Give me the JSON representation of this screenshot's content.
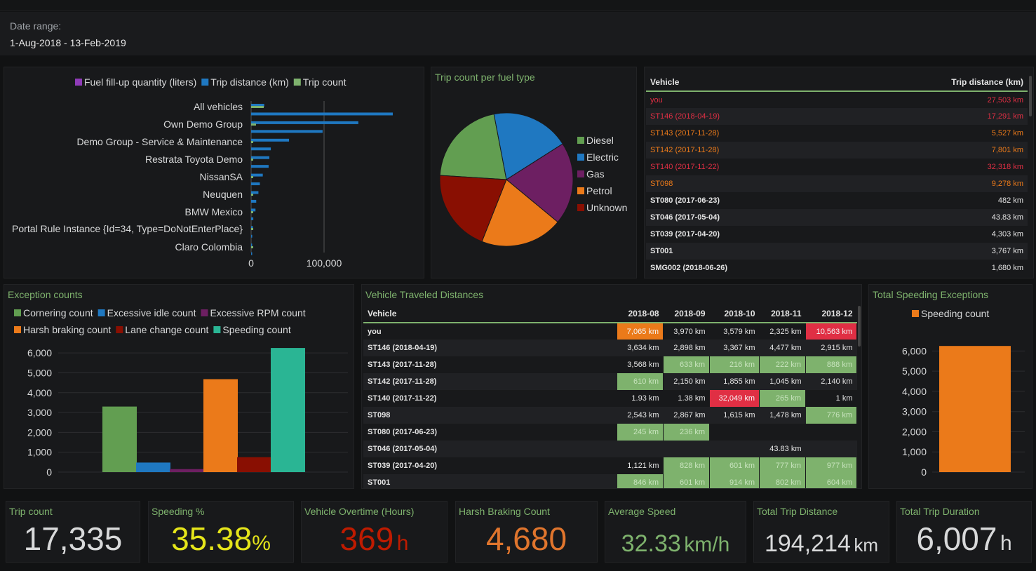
{
  "date_range": {
    "label": "Date range:",
    "value": "1-Aug-2018 - 13-Feb-2019"
  },
  "colors": {
    "green": "#7eb26d",
    "blue": "#1f78c1",
    "purple": "#6d1f62",
    "orange": "#eb7a1a",
    "red": "#bf1b00",
    "teal": "#2ab594",
    "purple_light": "#8f3bb8"
  },
  "chart_data": [
    {
      "type": "bar",
      "orientation": "horizontal",
      "legend": [
        "Fuel fill-up quantity (liters)",
        "Trip distance (km)",
        "Trip count"
      ],
      "categories": [
        "All vehicles",
        "Own Demo Group",
        "Demo Group - Service & Maintenance",
        "Restrata Toyota Demo",
        "NissanSA",
        "Neuquen",
        "BMW Mexico",
        "Portal Rule Instance {Id=34, Type=DoNotEnterPlace}",
        "Claro Colombia"
      ],
      "category_ticks": [
        0,
        2,
        4,
        6,
        8,
        10,
        12,
        14,
        16
      ],
      "rows": [
        18000,
        194214,
        147000,
        98000,
        52000,
        27000,
        25000,
        24000,
        16000,
        12000,
        10000,
        7000,
        6000,
        3000,
        2500,
        1500,
        1000,
        500
      ],
      "xlim": [
        0,
        200000
      ],
      "xticks": [
        0,
        100000
      ],
      "xtick_labels": [
        "0",
        "100,000"
      ]
    },
    {
      "type": "pie",
      "title": "Trip count per fuel type",
      "labels": [
        "Diesel",
        "Electric",
        "Gas",
        "Petrol",
        "Unknown"
      ],
      "values": [
        21,
        19,
        20,
        20,
        20
      ],
      "colors": [
        "#629e51",
        "#1f78c1",
        "#6d1f62",
        "#eb7a1a",
        "#890f02"
      ]
    },
    {
      "type": "bar",
      "title": "Exception counts",
      "legend": [
        "Cornering count",
        "Excessive idle count",
        "Excessive RPM count",
        "Harsh braking count",
        "Lane change count",
        "Speeding count"
      ],
      "values": [
        3300,
        480,
        150,
        4680,
        750,
        6250
      ],
      "colors": [
        "#629e51",
        "#1f78c1",
        "#6d1f62",
        "#eb7a1a",
        "#890f02",
        "#2ab594"
      ],
      "ylim": [
        0,
        6500
      ],
      "yticks": [
        "0",
        "1,000",
        "2,000",
        "3,000",
        "4,000",
        "5,000",
        "6,000"
      ]
    },
    {
      "type": "bar",
      "title": "Total Speeding Exceptions",
      "legend": [
        "Speeding count"
      ],
      "values": [
        6250
      ],
      "colors": [
        "#eb7a1a"
      ],
      "ylim": [
        0,
        6500
      ],
      "yticks": [
        "0",
        "1,000",
        "2,000",
        "3,000",
        "4,000",
        "5,000",
        "6,000"
      ]
    },
    {
      "type": "table",
      "title": "Vehicle Traveled Distances",
      "columns": [
        "Vehicle",
        "2018-08",
        "2018-09",
        "2018-10",
        "2018-11",
        "2018-12"
      ],
      "rows": [
        {
          "vehicle": "you",
          "cells": [
            {
              "v": "7,065 km",
              "c": "orange"
            },
            {
              "v": "3,970 km",
              "c": ""
            },
            {
              "v": "3,579 km",
              "c": ""
            },
            {
              "v": "2,325 km",
              "c": ""
            },
            {
              "v": "10,563 km",
              "c": "red"
            }
          ]
        },
        {
          "vehicle": "ST146 (2018-04-19)",
          "cells": [
            {
              "v": "3,634 km",
              "c": ""
            },
            {
              "v": "2,898 km",
              "c": ""
            },
            {
              "v": "3,367 km",
              "c": ""
            },
            {
              "v": "4,477 km",
              "c": ""
            },
            {
              "v": "2,915 km",
              "c": ""
            }
          ]
        },
        {
          "vehicle": "ST143 (2017-11-28)",
          "cells": [
            {
              "v": "3,568 km",
              "c": ""
            },
            {
              "v": "633 km",
              "c": "green"
            },
            {
              "v": "216 km",
              "c": "green"
            },
            {
              "v": "222 km",
              "c": "green"
            },
            {
              "v": "888 km",
              "c": "green"
            }
          ]
        },
        {
          "vehicle": "ST142 (2017-11-28)",
          "cells": [
            {
              "v": "610 km",
              "c": "green"
            },
            {
              "v": "2,150 km",
              "c": ""
            },
            {
              "v": "1,855 km",
              "c": ""
            },
            {
              "v": "1,045 km",
              "c": ""
            },
            {
              "v": "2,140 km",
              "c": ""
            }
          ]
        },
        {
          "vehicle": "ST140 (2017-11-22)",
          "cells": [
            {
              "v": "1.93 km",
              "c": ""
            },
            {
              "v": "1.38 km",
              "c": ""
            },
            {
              "v": "32,049 km",
              "c": "red"
            },
            {
              "v": "265 km",
              "c": "green"
            },
            {
              "v": "1 km",
              "c": ""
            }
          ]
        },
        {
          "vehicle": "ST098",
          "cells": [
            {
              "v": "2,543 km",
              "c": ""
            },
            {
              "v": "2,867 km",
              "c": ""
            },
            {
              "v": "1,615 km",
              "c": ""
            },
            {
              "v": "1,478 km",
              "c": ""
            },
            {
              "v": "776 km",
              "c": "green"
            }
          ]
        },
        {
          "vehicle": "ST080 (2017-06-23)",
          "cells": [
            {
              "v": "245 km",
              "c": "green"
            },
            {
              "v": "236 km",
              "c": "green"
            },
            {
              "v": "",
              "c": ""
            },
            {
              "v": "",
              "c": ""
            },
            {
              "v": "",
              "c": ""
            }
          ]
        },
        {
          "vehicle": "ST046 (2017-05-04)",
          "cells": [
            {
              "v": "",
              "c": ""
            },
            {
              "v": "",
              "c": ""
            },
            {
              "v": "",
              "c": ""
            },
            {
              "v": "43.83 km",
              "c": ""
            },
            {
              "v": "",
              "c": ""
            }
          ]
        },
        {
          "vehicle": "ST039 (2017-04-20)",
          "cells": [
            {
              "v": "1,121 km",
              "c": ""
            },
            {
              "v": "828 km",
              "c": "green"
            },
            {
              "v": "601 km",
              "c": "green"
            },
            {
              "v": "777 km",
              "c": "green"
            },
            {
              "v": "977 km",
              "c": "green"
            }
          ]
        },
        {
          "vehicle": "ST001",
          "cells": [
            {
              "v": "846 km",
              "c": "green"
            },
            {
              "v": "601 km",
              "c": "green"
            },
            {
              "v": "914 km",
              "c": "green"
            },
            {
              "v": "802 km",
              "c": "green"
            },
            {
              "v": "604 km",
              "c": "green"
            }
          ]
        }
      ]
    },
    {
      "type": "table",
      "columns": [
        "Vehicle",
        "Trip distance (km)"
      ],
      "rows": [
        {
          "vehicle": "you",
          "value": "27,503 km",
          "c": "red"
        },
        {
          "vehicle": "ST146 (2018-04-19)",
          "value": "17,291 km",
          "c": "red"
        },
        {
          "vehicle": "ST143 (2017-11-28)",
          "value": "5,527 km",
          "c": "orange"
        },
        {
          "vehicle": "ST142 (2017-11-28)",
          "value": "7,801 km",
          "c": "orange"
        },
        {
          "vehicle": "ST140 (2017-11-22)",
          "value": "32,318 km",
          "c": "red"
        },
        {
          "vehicle": "ST098",
          "value": "9,278 km",
          "c": "orange"
        },
        {
          "vehicle": "ST080 (2017-06-23)",
          "value": "482 km",
          "c": ""
        },
        {
          "vehicle": "ST046 (2017-05-04)",
          "value": "43.83 km",
          "c": ""
        },
        {
          "vehicle": "ST039 (2017-04-20)",
          "value": "4,303 km",
          "c": ""
        },
        {
          "vehicle": "ST001",
          "value": "3,767 km",
          "c": ""
        },
        {
          "vehicle": "SMG002 (2018-06-26)",
          "value": "1,680 km",
          "c": ""
        }
      ]
    }
  ],
  "stats": [
    {
      "title": "Trip count",
      "value": "17,335",
      "unit": "",
      "color": "#d8d9da"
    },
    {
      "title": "Speeding %",
      "value": "35.38",
      "unit": "%",
      "color": "#e5e51a"
    },
    {
      "title": "Vehicle Overtime (Hours)",
      "value": "369",
      "unit": "h",
      "color": "#bf1b00"
    },
    {
      "title": "Harsh Braking Count",
      "value": "4,680",
      "unit": "",
      "color": "#e0752d"
    },
    {
      "title": "Average Speed",
      "value": "32.33",
      "unit": "km/h",
      "color": "#7eb26d"
    },
    {
      "title": "Total Trip Distance",
      "value": "194,214",
      "unit": "km",
      "color": "#d8d9da"
    },
    {
      "title": "Total Trip Duration",
      "value": "6,007",
      "unit": "h",
      "color": "#d8d9da"
    }
  ]
}
